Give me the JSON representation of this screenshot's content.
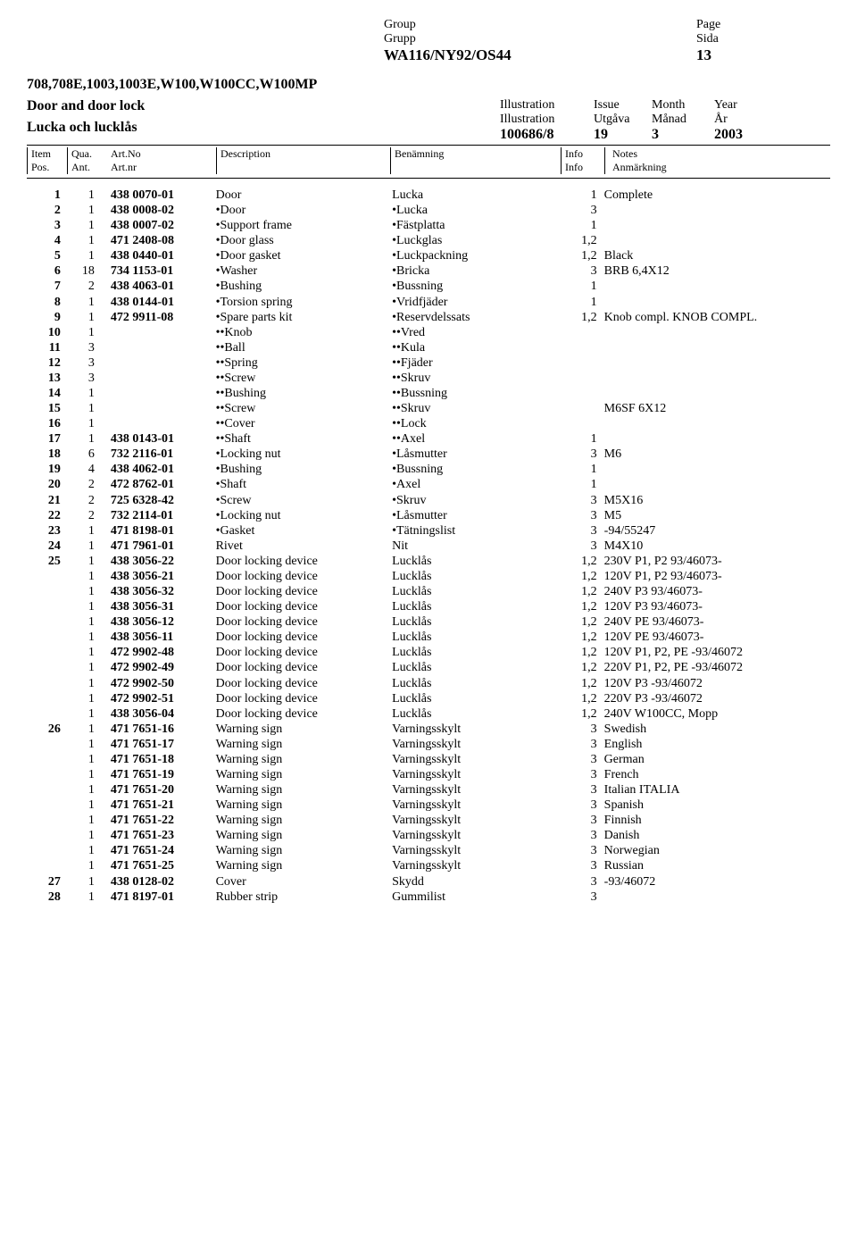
{
  "header": {
    "group_en": "Group",
    "group_sv": "Grupp",
    "page_en": "Page",
    "page_sv": "Sida",
    "group_value": "WA116/NY92/OS44",
    "page_value": "13"
  },
  "section": {
    "models": "708,708E,1003,1003E,W100,W100CC,W100MP",
    "title_en": "Door and door lock",
    "title_sv": "Lucka och lucklås",
    "illus_en": "Illustration",
    "illus_sv": "Illustration",
    "issue_en": "Issue",
    "issue_sv": "Utgåva",
    "month_en": "Month",
    "month_sv": "Månad",
    "year_en": "Year",
    "year_sv": "År",
    "illus_value": "100686/8",
    "issue_value": "19",
    "month_value": "3",
    "year_value": "2003"
  },
  "columns": {
    "item_en": "Item",
    "item_sv": "Pos.",
    "qua_en": "Qua.",
    "qua_sv": "Ant.",
    "art_en": "Art.No",
    "art_sv": "Art.nr",
    "desc_en": "Description",
    "ben_en": "Benämning",
    "info_en": "Info",
    "info_sv": "Info",
    "notes_en": "Notes",
    "notes_sv": "Anmärkning"
  },
  "rows": [
    {
      "item": "1",
      "qua": "1",
      "art": "438 0070-01",
      "desc": "Door",
      "ben": "Lucka",
      "info": "1",
      "notes": "Complete"
    },
    {
      "item": "2",
      "qua": "1",
      "art": "438 0008-02",
      "desc": "•Door",
      "ben": "•Lucka",
      "info": "3",
      "notes": ""
    },
    {
      "item": "3",
      "qua": "1",
      "art": "438 0007-02",
      "desc": "•Support frame",
      "ben": "•Fästplatta",
      "info": "1",
      "notes": ""
    },
    {
      "item": "4",
      "qua": "1",
      "art": "471 2408-08",
      "desc": "•Door glass",
      "ben": "•Luckglas",
      "info": "1,2",
      "notes": ""
    },
    {
      "item": "5",
      "qua": "1",
      "art": "438 0440-01",
      "desc": "•Door gasket",
      "ben": "•Luckpackning",
      "info": "1,2",
      "notes": "Black"
    },
    {
      "item": "6",
      "qua": "18",
      "art": "734 1153-01",
      "desc": "•Washer",
      "ben": "•Bricka",
      "info": "3",
      "notes": "BRB 6,4X12"
    },
    {
      "item": "7",
      "qua": "2",
      "art": "438 4063-01",
      "desc": "•Bushing",
      "ben": "•Bussning",
      "info": "1",
      "notes": ""
    },
    {
      "item": "8",
      "qua": "1",
      "art": "438 0144-01",
      "desc": "•Torsion spring",
      "ben": "•Vridfjäder",
      "info": "1",
      "notes": ""
    },
    {
      "item": "9",
      "qua": "1",
      "art": "472 9911-08",
      "desc": "•Spare parts kit",
      "ben": "•Reservdelssats",
      "info": "1,2",
      "notes": "Knob compl. KNOB COMPL."
    },
    {
      "item": "10",
      "qua": "1",
      "art": "",
      "desc": "••Knob",
      "ben": "••Vred",
      "info": "",
      "notes": ""
    },
    {
      "item": "11",
      "qua": "3",
      "art": "",
      "desc": "••Ball",
      "ben": "••Kula",
      "info": "",
      "notes": ""
    },
    {
      "item": "12",
      "qua": "3",
      "art": "",
      "desc": "••Spring",
      "ben": "••Fjäder",
      "info": "",
      "notes": ""
    },
    {
      "item": "13",
      "qua": "3",
      "art": "",
      "desc": "••Screw",
      "ben": "••Skruv",
      "info": "",
      "notes": ""
    },
    {
      "item": "14",
      "qua": "1",
      "art": "",
      "desc": "••Bushing",
      "ben": "••Bussning",
      "info": "",
      "notes": ""
    },
    {
      "item": "15",
      "qua": "1",
      "art": "",
      "desc": "••Screw",
      "ben": "••Skruv",
      "info": "",
      "notes": "M6SF 6X12"
    },
    {
      "item": "16",
      "qua": "1",
      "art": "",
      "desc": "••Cover",
      "ben": "••Lock",
      "info": "",
      "notes": ""
    },
    {
      "item": "17",
      "qua": "1",
      "art": "438 0143-01",
      "desc": "••Shaft",
      "ben": "••Axel",
      "info": "1",
      "notes": ""
    },
    {
      "item": "18",
      "qua": "6",
      "art": "732 2116-01",
      "desc": "•Locking nut",
      "ben": "•Låsmutter",
      "info": "3",
      "notes": "M6"
    },
    {
      "item": "19",
      "qua": "4",
      "art": "438 4062-01",
      "desc": "•Bushing",
      "ben": "•Bussning",
      "info": "1",
      "notes": ""
    },
    {
      "item": "20",
      "qua": "2",
      "art": "472 8762-01",
      "desc": "•Shaft",
      "ben": "•Axel",
      "info": "1",
      "notes": ""
    },
    {
      "item": "21",
      "qua": "2",
      "art": "725 6328-42",
      "desc": "•Screw",
      "ben": "•Skruv",
      "info": "3",
      "notes": "M5X16"
    },
    {
      "item": "22",
      "qua": "2",
      "art": "732 2114-01",
      "desc": "•Locking nut",
      "ben": "•Låsmutter",
      "info": "3",
      "notes": "M5"
    },
    {
      "item": "23",
      "qua": "1",
      "art": "471 8198-01",
      "desc": "•Gasket",
      "ben": "•Tätningslist",
      "info": "3",
      "notes": "-94/55247"
    },
    {
      "item": "24",
      "qua": "1",
      "art": "471 7961-01",
      "desc": "Rivet",
      "ben": "Nit",
      "info": "3",
      "notes": "M4X10"
    },
    {
      "item": "25",
      "qua": "1",
      "art": "438 3056-22",
      "desc": "Door locking device",
      "ben": "Lucklås",
      "info": "1,2",
      "notes": "230V P1, P2 93/46073-"
    },
    {
      "item": "",
      "qua": "1",
      "art": "438 3056-21",
      "desc": "Door locking device",
      "ben": "Lucklås",
      "info": "1,2",
      "notes": "120V P1, P2 93/46073-"
    },
    {
      "item": "",
      "qua": "1",
      "art": "438 3056-32",
      "desc": "Door locking device",
      "ben": "Lucklås",
      "info": "1,2",
      "notes": "240V P3 93/46073-"
    },
    {
      "item": "",
      "qua": "1",
      "art": "438 3056-31",
      "desc": "Door locking device",
      "ben": "Lucklås",
      "info": "1,2",
      "notes": "120V P3 93/46073-"
    },
    {
      "item": "",
      "qua": "1",
      "art": "438 3056-12",
      "desc": "Door locking device",
      "ben": "Lucklås",
      "info": "1,2",
      "notes": "240V PE 93/46073-"
    },
    {
      "item": "",
      "qua": "1",
      "art": "438 3056-11",
      "desc": "Door locking device",
      "ben": "Lucklås",
      "info": "1,2",
      "notes": "120V PE 93/46073-"
    },
    {
      "item": "",
      "qua": "1",
      "art": "472 9902-48",
      "desc": "Door locking device",
      "ben": "Lucklås",
      "info": "1,2",
      "notes": "120V P1, P2, PE -93/46072"
    },
    {
      "item": "",
      "qua": "1",
      "art": "472 9902-49",
      "desc": "Door locking device",
      "ben": "Lucklås",
      "info": "1,2",
      "notes": "220V P1, P2, PE -93/46072"
    },
    {
      "item": "",
      "qua": "1",
      "art": "472 9902-50",
      "desc": "Door locking device",
      "ben": "Lucklås",
      "info": "1,2",
      "notes": "120V P3 -93/46072"
    },
    {
      "item": "",
      "qua": "1",
      "art": "472 9902-51",
      "desc": "Door locking device",
      "ben": "Lucklås",
      "info": "1,2",
      "notes": "220V P3 -93/46072"
    },
    {
      "item": "",
      "qua": "1",
      "art": "438 3056-04",
      "desc": "Door locking device",
      "ben": "Lucklås",
      "info": "1,2",
      "notes": "240V W100CC, Mopp"
    },
    {
      "item": "26",
      "qua": "1",
      "art": "471 7651-16",
      "desc": "Warning sign",
      "ben": "Varningsskylt",
      "info": "3",
      "notes": "Swedish"
    },
    {
      "item": "",
      "qua": "1",
      "art": "471 7651-17",
      "desc": "Warning sign",
      "ben": "Varningsskylt",
      "info": "3",
      "notes": "English"
    },
    {
      "item": "",
      "qua": "1",
      "art": "471 7651-18",
      "desc": "Warning sign",
      "ben": "Varningsskylt",
      "info": "3",
      "notes": "German"
    },
    {
      "item": "",
      "qua": "1",
      "art": "471 7651-19",
      "desc": "Warning sign",
      "ben": "Varningsskylt",
      "info": "3",
      "notes": "French"
    },
    {
      "item": "",
      "qua": "1",
      "art": "471 7651-20",
      "desc": "Warning sign",
      "ben": "Varningsskylt",
      "info": "3",
      "notes": "Italian ITALIA"
    },
    {
      "item": "",
      "qua": "1",
      "art": "471 7651-21",
      "desc": "Warning sign",
      "ben": "Varningsskylt",
      "info": "3",
      "notes": "Spanish"
    },
    {
      "item": "",
      "qua": "1",
      "art": "471 7651-22",
      "desc": "Warning sign",
      "ben": "Varningsskylt",
      "info": "3",
      "notes": "Finnish"
    },
    {
      "item": "",
      "qua": "1",
      "art": "471 7651-23",
      "desc": "Warning sign",
      "ben": "Varningsskylt",
      "info": "3",
      "notes": "Danish"
    },
    {
      "item": "",
      "qua": "1",
      "art": "471 7651-24",
      "desc": "Warning sign",
      "ben": "Varningsskylt",
      "info": "3",
      "notes": "Norwegian"
    },
    {
      "item": "",
      "qua": "1",
      "art": "471 7651-25",
      "desc": "Warning sign",
      "ben": "Varningsskylt",
      "info": "3",
      "notes": "Russian"
    },
    {
      "item": "27",
      "qua": "1",
      "art": "438 0128-02",
      "desc": "Cover",
      "ben": "Skydd",
      "info": "3",
      "notes": "-93/46072"
    },
    {
      "item": "28",
      "qua": "1",
      "art": "471 8197-01",
      "desc": "Rubber strip",
      "ben": "Gummilist",
      "info": "3",
      "notes": ""
    }
  ]
}
